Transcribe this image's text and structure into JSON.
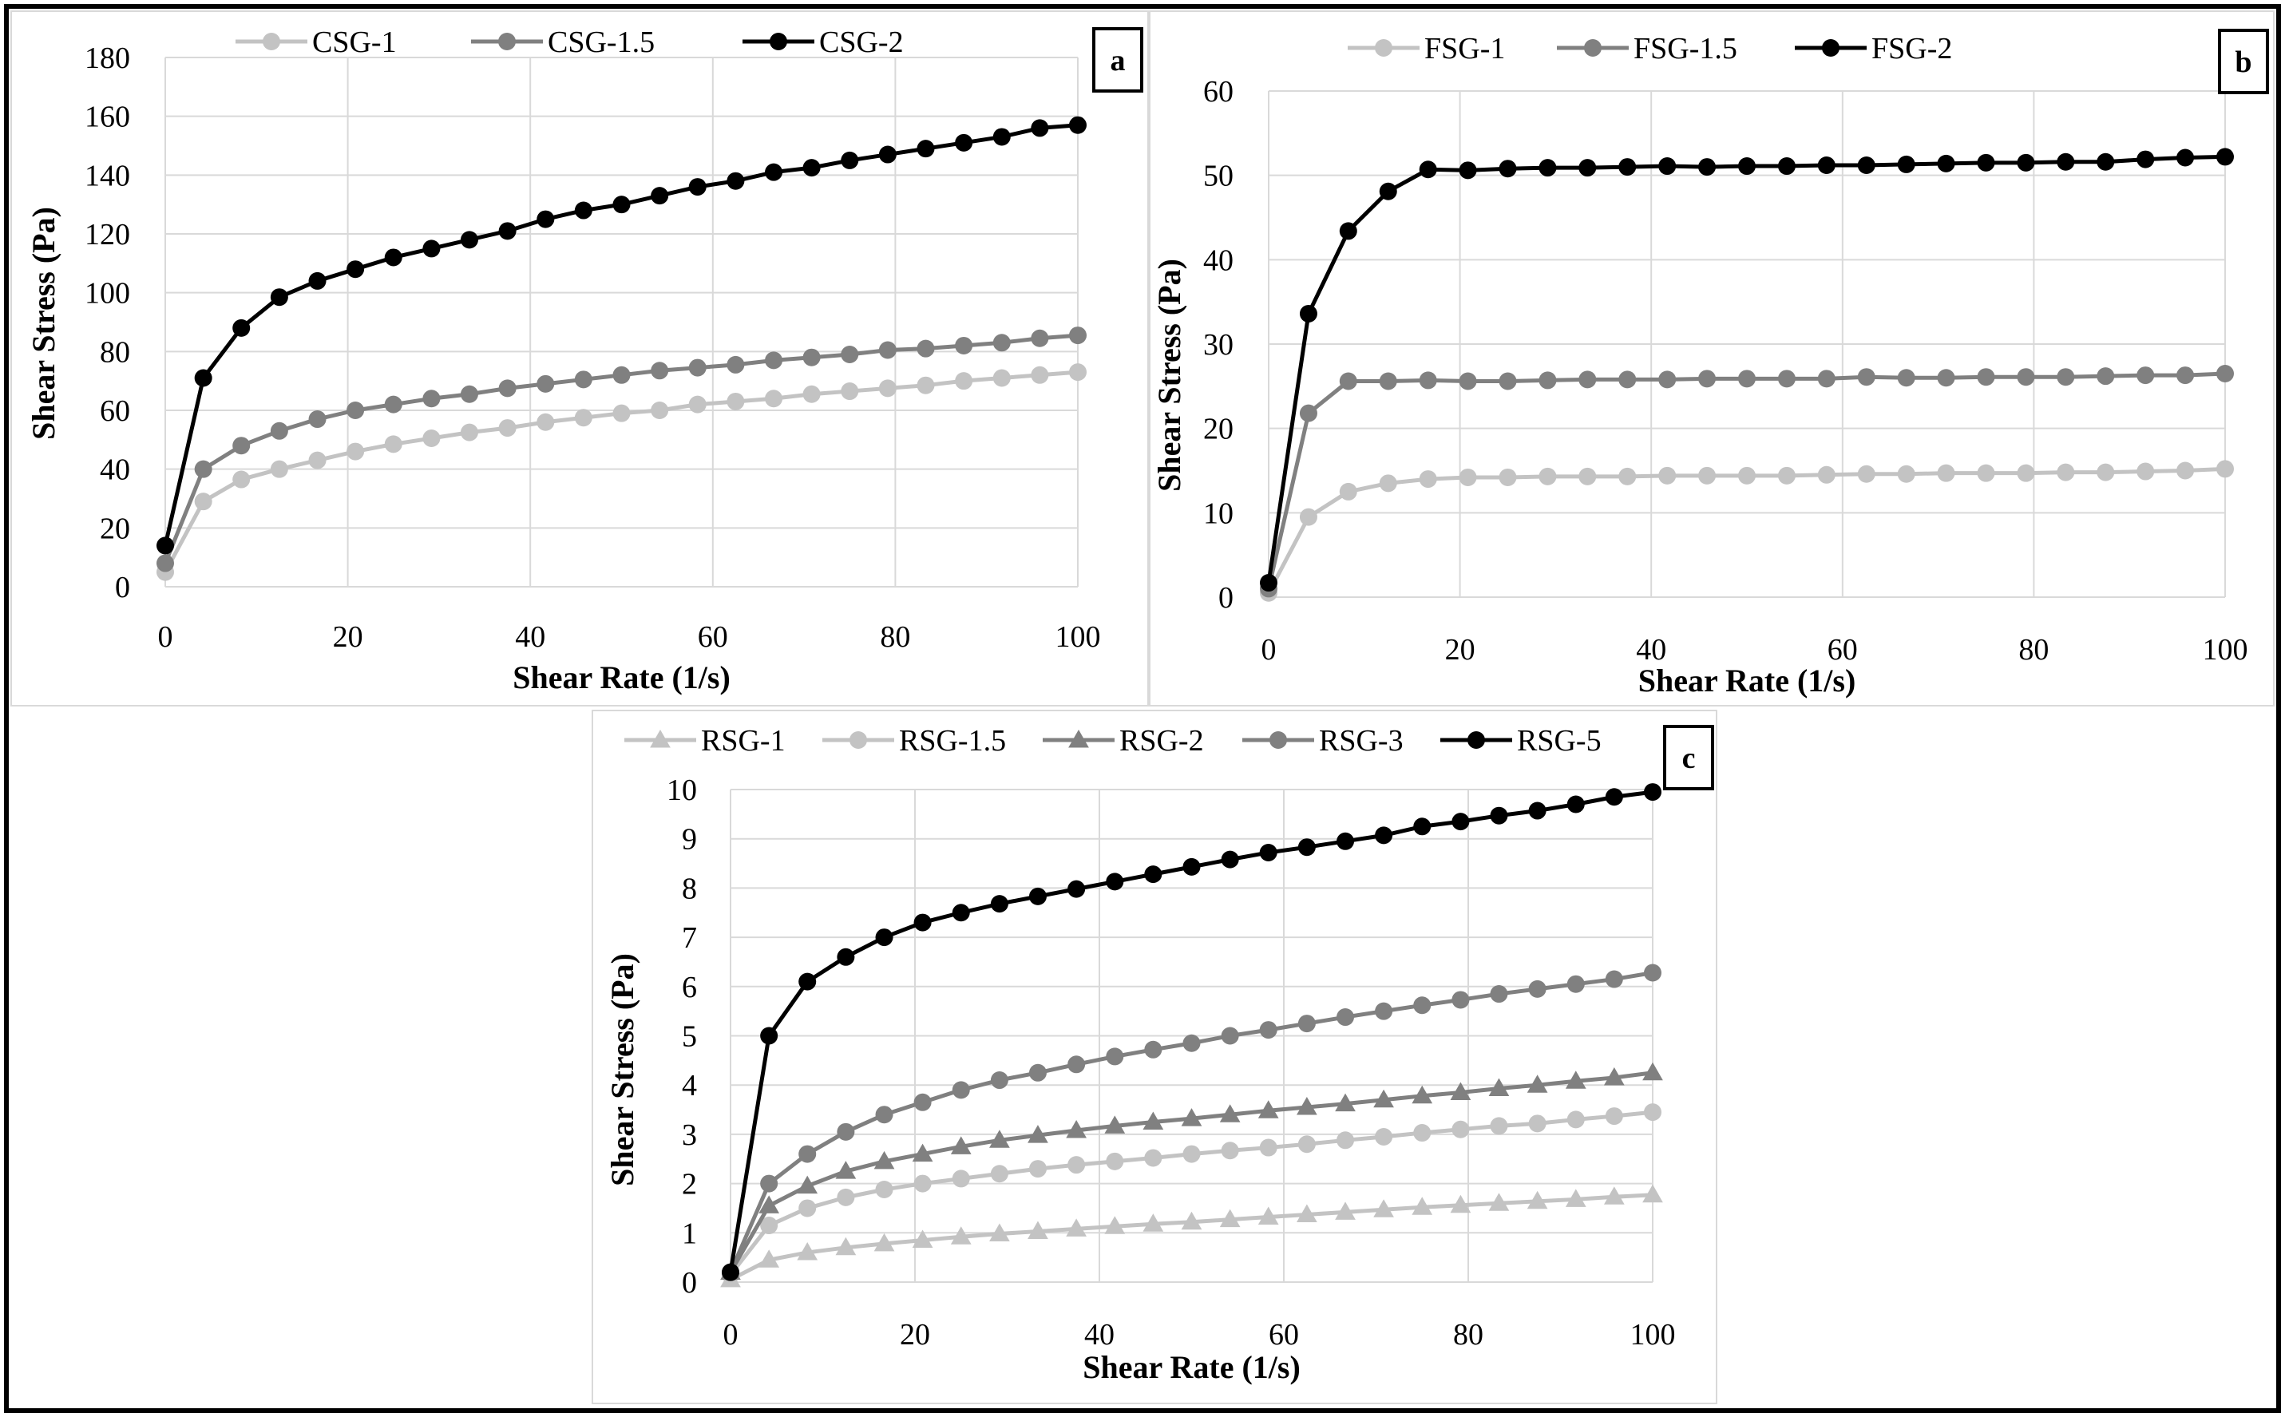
{
  "figure": {
    "panel_ids": [
      "a",
      "b",
      "c"
    ]
  },
  "chart_data": [
    {
      "id": "a",
      "type": "line",
      "panel_label": "a",
      "xlabel": "Shear Rate (1/s)",
      "ylabel": "Shear Stress (Pa)",
      "xlim": [
        0,
        100
      ],
      "ylim": [
        0,
        180
      ],
      "xticks": [
        0,
        20,
        40,
        60,
        80,
        100
      ],
      "yticks": [
        0,
        20,
        40,
        60,
        80,
        100,
        120,
        140,
        160,
        180
      ],
      "grid": true,
      "legend_position": "top",
      "x": [
        0,
        4.17,
        8.33,
        12.5,
        16.67,
        20.83,
        25,
        29.17,
        33.33,
        37.5,
        41.67,
        45.83,
        50,
        54.17,
        58.33,
        62.5,
        66.67,
        70.83,
        75,
        79.17,
        83.33,
        87.5,
        91.67,
        95.83,
        100
      ],
      "series": [
        {
          "name": "CSG-1",
          "color": "#c3c3c3",
          "marker": "circle",
          "values": [
            5,
            29,
            36.5,
            40,
            43,
            46,
            48.5,
            50.5,
            52.5,
            54,
            56,
            57.5,
            59,
            60,
            62,
            63,
            64,
            65.5,
            66.5,
            67.5,
            68.5,
            70,
            71,
            72,
            73
          ]
        },
        {
          "name": "CSG-1.5",
          "color": "#808080",
          "marker": "circle",
          "values": [
            8,
            40,
            48,
            53,
            57,
            60,
            62,
            64,
            65.5,
            67.5,
            69,
            70.5,
            72,
            73.5,
            74.5,
            75.5,
            77,
            78,
            79,
            80.5,
            81,
            82,
            83,
            84.5,
            85.5
          ]
        },
        {
          "name": "CSG-2",
          "color": "#000000",
          "marker": "circle",
          "values": [
            14,
            71,
            88,
            98.5,
            104,
            108,
            112,
            115,
            118,
            121,
            125,
            128,
            130,
            133,
            136,
            138,
            141,
            142.5,
            145,
            147,
            149,
            151,
            153,
            156,
            157
          ]
        }
      ]
    },
    {
      "id": "b",
      "type": "line",
      "panel_label": "b",
      "xlabel": "Shear Rate (1/s)",
      "ylabel": "Shear Stress (Pa)",
      "xlim": [
        0,
        100
      ],
      "ylim": [
        0,
        60
      ],
      "xticks": [
        0,
        20,
        40,
        60,
        80,
        100
      ],
      "yticks": [
        0,
        10,
        20,
        30,
        40,
        50,
        60
      ],
      "grid": true,
      "legend_position": "top",
      "x": [
        0,
        4.17,
        8.33,
        12.5,
        16.67,
        20.83,
        25,
        29.17,
        33.33,
        37.5,
        41.67,
        45.83,
        50,
        54.17,
        58.33,
        62.5,
        66.67,
        70.83,
        75,
        79.17,
        83.33,
        87.5,
        91.67,
        95.83,
        100
      ],
      "series": [
        {
          "name": "FSG-1",
          "color": "#c3c3c3",
          "marker": "circle",
          "values": [
            0.5,
            9.5,
            12.5,
            13.5,
            14,
            14.2,
            14.2,
            14.3,
            14.3,
            14.3,
            14.4,
            14.4,
            14.4,
            14.4,
            14.5,
            14.6,
            14.6,
            14.7,
            14.7,
            14.7,
            14.8,
            14.8,
            14.9,
            15,
            15.2
          ]
        },
        {
          "name": "FSG-1.5",
          "color": "#808080",
          "marker": "circle",
          "values": [
            1,
            21.8,
            25.6,
            25.6,
            25.7,
            25.6,
            25.6,
            25.7,
            25.8,
            25.8,
            25.8,
            25.9,
            25.9,
            25.9,
            25.9,
            26.1,
            26,
            26,
            26.1,
            26.1,
            26.1,
            26.2,
            26.3,
            26.3,
            26.5
          ]
        },
        {
          "name": "FSG-2",
          "color": "#000000",
          "marker": "circle",
          "values": [
            1.7,
            33.6,
            43.4,
            48.1,
            50.7,
            50.6,
            50.8,
            50.9,
            50.9,
            51,
            51.1,
            51,
            51.1,
            51.1,
            51.2,
            51.2,
            51.3,
            51.4,
            51.5,
            51.5,
            51.6,
            51.6,
            51.9,
            52.1,
            52.2
          ]
        }
      ]
    },
    {
      "id": "c",
      "type": "line",
      "panel_label": "c",
      "xlabel": "Shear Rate (1/s)",
      "ylabel": "Shear Stress (Pa)",
      "xlim": [
        0,
        100
      ],
      "ylim": [
        0,
        10
      ],
      "xticks": [
        0,
        20,
        40,
        60,
        80,
        100
      ],
      "yticks": [
        0,
        1,
        2,
        3,
        4,
        5,
        6,
        7,
        8,
        9,
        10
      ],
      "grid": true,
      "legend_position": "top",
      "x": [
        0,
        4.17,
        8.33,
        12.5,
        16.67,
        20.83,
        25,
        29.17,
        33.33,
        37.5,
        41.67,
        45.83,
        50,
        54.17,
        58.33,
        62.5,
        66.67,
        70.83,
        75,
        79.17,
        83.33,
        87.5,
        91.67,
        95.83,
        100
      ],
      "series": [
        {
          "name": "RSG-1",
          "color": "#c3c3c3",
          "marker": "triangle",
          "values": [
            0.05,
            0.45,
            0.6,
            0.7,
            0.78,
            0.85,
            0.92,
            0.98,
            1.03,
            1.08,
            1.13,
            1.18,
            1.22,
            1.27,
            1.32,
            1.37,
            1.42,
            1.47,
            1.52,
            1.56,
            1.6,
            1.64,
            1.68,
            1.73,
            1.77
          ]
        },
        {
          "name": "RSG-1.5",
          "color": "#c3c3c3",
          "marker": "circle",
          "values": [
            0.15,
            1.15,
            1.5,
            1.72,
            1.88,
            2.0,
            2.1,
            2.2,
            2.3,
            2.38,
            2.45,
            2.52,
            2.6,
            2.67,
            2.73,
            2.8,
            2.88,
            2.95,
            3.03,
            3.1,
            3.17,
            3.22,
            3.3,
            3.37,
            3.45
          ]
        },
        {
          "name": "RSG-2",
          "color": "#808080",
          "marker": "triangle",
          "values": [
            0.2,
            1.55,
            1.95,
            2.25,
            2.45,
            2.6,
            2.75,
            2.88,
            2.98,
            3.08,
            3.17,
            3.25,
            3.32,
            3.4,
            3.48,
            3.55,
            3.62,
            3.7,
            3.78,
            3.85,
            3.93,
            4.0,
            4.08,
            4.15,
            4.25
          ]
        },
        {
          "name": "RSG-3",
          "color": "#808080",
          "marker": "circle",
          "values": [
            0.2,
            2.0,
            2.6,
            3.05,
            3.4,
            3.65,
            3.9,
            4.1,
            4.25,
            4.42,
            4.58,
            4.72,
            4.85,
            5.0,
            5.12,
            5.25,
            5.38,
            5.5,
            5.62,
            5.73,
            5.85,
            5.95,
            6.05,
            6.15,
            6.28
          ]
        },
        {
          "name": "RSG-5",
          "color": "#000000",
          "marker": "circle",
          "values": [
            0.2,
            5.0,
            6.1,
            6.6,
            7.0,
            7.3,
            7.5,
            7.68,
            7.83,
            7.98,
            8.13,
            8.28,
            8.43,
            8.58,
            8.72,
            8.83,
            8.95,
            9.07,
            9.25,
            9.35,
            9.47,
            9.57,
            9.7,
            9.85,
            9.95
          ]
        }
      ]
    }
  ]
}
